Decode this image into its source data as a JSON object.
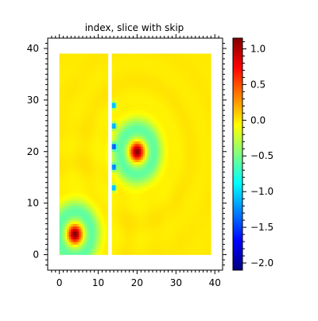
{
  "chart_data": {
    "type": "heatmap",
    "title": "index, slice with skip",
    "xlabel": "",
    "ylabel": "",
    "xlim": [
      -3,
      42
    ],
    "ylim": [
      -3,
      42
    ],
    "x_ticks": [
      0,
      10,
      20,
      30,
      40
    ],
    "y_ticks": [
      0,
      10,
      20,
      30,
      40
    ],
    "grid": false,
    "field": {
      "x_range": [
        0,
        39
      ],
      "y_range": [
        0,
        39
      ],
      "skipped_columns": [
        12.5,
        13.5
      ],
      "background_value": 0.0,
      "features": [
        {
          "x": 20,
          "y": 20,
          "peak": 1.1,
          "ring": -0.55
        },
        {
          "x": 4,
          "y": 4,
          "peak": 1.1,
          "ring": -0.55
        }
      ],
      "edge_spots_x": 14,
      "edge_spots_y": [
        13,
        17,
        21,
        25,
        29
      ],
      "edge_spot_value": -1.5
    },
    "colorbar": {
      "min": -2.1,
      "max": 1.15,
      "ticks": [
        1.0,
        0.5,
        0.0,
        -0.5,
        -1.0,
        -1.5,
        -2.0
      ],
      "tick_labels": [
        "1.0",
        "0.5",
        "0.0",
        "−0.5",
        "−1.0",
        "−1.5",
        "−2.0"
      ]
    }
  }
}
